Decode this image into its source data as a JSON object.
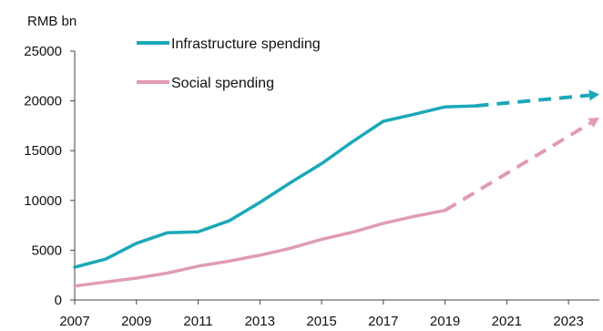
{
  "chart_data": {
    "type": "line",
    "title": "",
    "xlabel": "",
    "ylabel": "RMB bn",
    "xlim": [
      2007,
      2024
    ],
    "ylim": [
      0,
      25000
    ],
    "x_ticks": [
      "2007",
      "2009",
      "2011",
      "2013",
      "2015",
      "2017",
      "2019",
      "2021",
      "2023"
    ],
    "y_ticks": [
      "0",
      "5000",
      "10000",
      "15000",
      "20000",
      "25000"
    ],
    "grid": false,
    "legend_position": "top-left",
    "series": [
      {
        "name": "Infrastructure spending",
        "color": "#1ba8b8",
        "x": [
          2007,
          2008,
          2009,
          2010,
          2011,
          2012,
          2013,
          2014,
          2015,
          2016,
          2017,
          2018,
          2019,
          2020
        ],
        "values": [
          3300,
          4100,
          5700,
          6750,
          6850,
          7950,
          9800,
          11800,
          13700,
          15900,
          17950,
          18650,
          19400,
          19500
        ],
        "projection": {
          "x": [
            2020,
            2024
          ],
          "values": [
            19500,
            20650
          ]
        }
      },
      {
        "name": "Social spending",
        "color": "#e09cb4",
        "x": [
          2007,
          2008,
          2009,
          2010,
          2011,
          2012,
          2013,
          2014,
          2015,
          2016,
          2017,
          2018,
          2019
        ],
        "values": [
          1400,
          1800,
          2200,
          2700,
          3400,
          3900,
          4500,
          5200,
          6100,
          6800,
          7700,
          8400,
          9000
        ],
        "projection": {
          "x": [
            2019,
            2024
          ],
          "values": [
            9000,
            18300
          ]
        }
      }
    ]
  }
}
